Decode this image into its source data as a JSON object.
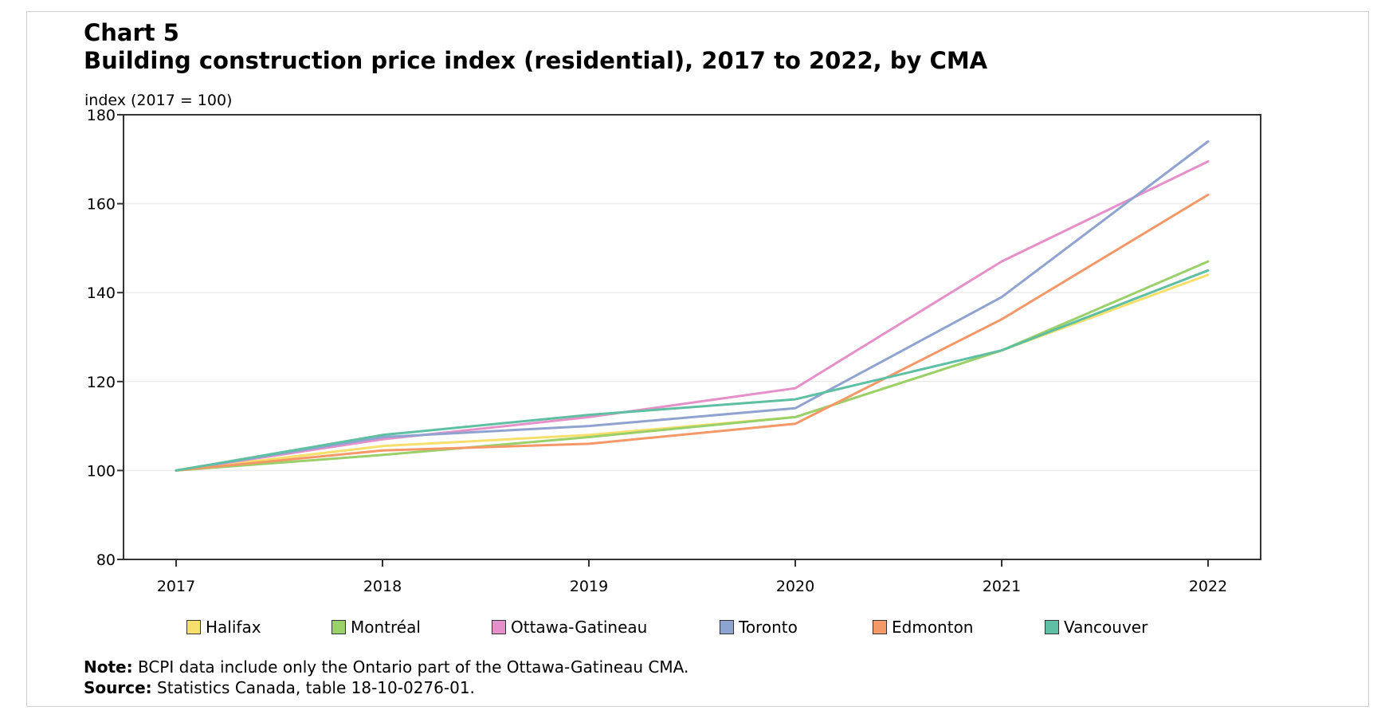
{
  "figure": {
    "label": "Chart 5",
    "title": "Building  construction  price  index  (residential),  2017 to 2022, by CMA",
    "note_label": "Note:",
    "note_text": " BCPI data include only the Ontario part of the Ottawa-Gatineau CMA.",
    "source_label": "Source:",
    "source_text": " Statistics Canada, table 18-10-0276-01."
  },
  "colors": {
    "Halifax": "#f7df6b",
    "Montréal": "#9ad06a",
    "Ottawa-Gatineau": "#e590c8",
    "Toronto": "#8fa3d0",
    "Edmonton": "#f59868",
    "Vancouver": "#5fbfa3",
    "axis": "#333333",
    "grid": "#ececec"
  },
  "chart_data": {
    "type": "line",
    "ylabel": "index (2017 = 100)",
    "xlabel": "",
    "ylim": [
      80,
      180
    ],
    "yticks": [
      80,
      100,
      120,
      140,
      160,
      180
    ],
    "grid": "horizontal",
    "legend": "bottom",
    "x": [
      "2017",
      "2018",
      "2019",
      "2020",
      "2021",
      "2022"
    ],
    "series": [
      {
        "name": "Halifax",
        "values": [
          100,
          105.5,
          108,
          112,
          127,
          144
        ]
      },
      {
        "name": "Montréal",
        "values": [
          100,
          103.5,
          107.5,
          112,
          127,
          147
        ]
      },
      {
        "name": "Ottawa-Gatineau",
        "values": [
          100,
          107,
          112,
          118.5,
          147,
          169.5
        ]
      },
      {
        "name": "Toronto",
        "values": [
          100,
          107.5,
          110,
          114,
          139,
          174
        ]
      },
      {
        "name": "Edmonton",
        "values": [
          100,
          104.5,
          106,
          110.5,
          134,
          162
        ]
      },
      {
        "name": "Vancouver",
        "values": [
          100,
          108,
          112.5,
          116,
          127,
          145
        ]
      }
    ]
  }
}
